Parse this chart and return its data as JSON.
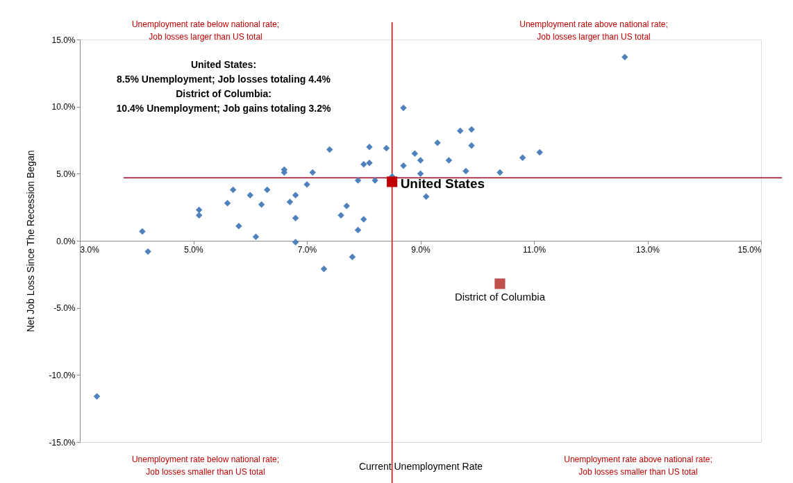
{
  "chart_data": {
    "type": "scatter",
    "xlabel": "Current Unemployment Rate",
    "ylabel": "Net Job Loss Since The Recession Began",
    "xlim": [
      3,
      15
    ],
    "ylim": [
      -15,
      15
    ],
    "xticks": [
      {
        "value": 3,
        "label": "3.0%"
      },
      {
        "value": 5,
        "label": "5.0%"
      },
      {
        "value": 7,
        "label": "7.0%"
      },
      {
        "value": 9,
        "label": "9.0%"
      },
      {
        "value": 11,
        "label": "11.0%"
      },
      {
        "value": 13,
        "label": "13.0%"
      },
      {
        "value": 15,
        "label": "15.0%"
      }
    ],
    "yticks": [
      {
        "value": -15,
        "label": "-15.0%"
      },
      {
        "value": -10,
        "label": "-10.0%"
      },
      {
        "value": -5,
        "label": "-5.0%"
      },
      {
        "value": 0,
        "label": "0.0%"
      },
      {
        "value": 5,
        "label": "5.0%"
      },
      {
        "value": 10,
        "label": "10.0%"
      },
      {
        "value": 15,
        "label": "15.0%"
      }
    ],
    "grid": false,
    "series": [
      {
        "color": "#4f81bd",
        "marker": "diamond",
        "x": [
          3.3,
          4.1,
          4.2,
          5.1,
          5.1,
          5.6,
          5.7,
          5.8,
          6.0,
          6.1,
          6.2,
          6.3,
          6.6,
          6.6,
          6.7,
          6.8,
          6.8,
          6.8,
          7.0,
          7.1,
          7.3,
          7.4,
          7.6,
          7.7,
          7.8,
          7.9,
          7.9,
          8.0,
          8.0,
          8.1,
          8.1,
          8.2,
          8.4,
          8.5,
          8.7,
          8.7,
          8.9,
          9.0,
          9.0,
          9.1,
          9.3,
          9.5,
          9.7,
          9.8,
          9.9,
          9.9,
          10.4,
          10.8,
          11.1,
          12.6
        ],
        "values": [
          -11.6,
          0.7,
          -0.8,
          2.3,
          1.9,
          2.8,
          3.8,
          1.1,
          3.4,
          0.3,
          2.7,
          3.8,
          5.3,
          5.1,
          2.9,
          3.4,
          1.7,
          -0.1,
          4.2,
          5.1,
          -2.1,
          6.8,
          1.9,
          2.6,
          -1.2,
          4.5,
          0.8,
          1.6,
          5.7,
          5.8,
          7.0,
          4.5,
          6.9,
          4.8,
          9.9,
          5.6,
          6.5,
          6.0,
          5.0,
          3.3,
          7.3,
          6.0,
          8.2,
          5.2,
          8.3,
          7.1,
          5.1,
          6.2,
          6.6,
          13.7
        ]
      },
      {
        "name": "United States",
        "color": "#c00000",
        "marker": "square",
        "x": [
          8.5
        ],
        "values": [
          4.4
        ]
      },
      {
        "name": "District of Columbia",
        "color": "#c0504d",
        "marker": "square",
        "x": [
          10.4
        ],
        "values": [
          -3.2
        ]
      }
    ],
    "ref_lines": [
      {
        "axis": "x",
        "value": 8.5,
        "color": "#c00000"
      },
      {
        "axis": "y",
        "value": 4.7,
        "color": "#a50021"
      }
    ],
    "annotations": [
      "United States:\n8.5% Unemployment; Job losses totaling 4.4%\nDistrict of Columbia:\n10.4% Unemployment; Job gains totaling 3.2%",
      "Unemployment rate below national rate;\nJob losses larger than US total",
      "Unemployment rate above national rate;\nJob losses larger than US total",
      "Unemployment rate below national rate;\nJob losses smaller than US total",
      "Unemployment rate above national rate;\nJob losses smaller than US total"
    ]
  }
}
